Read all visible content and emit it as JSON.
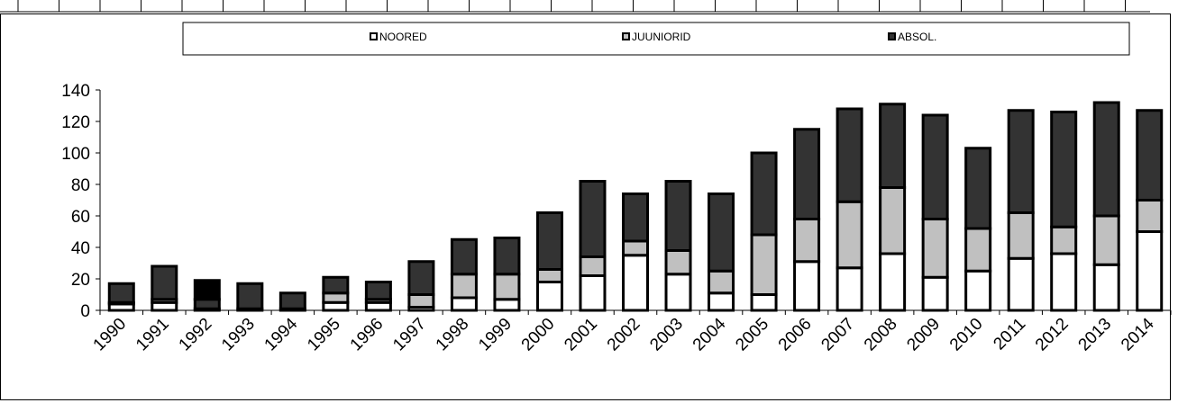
{
  "chart_data": {
    "type": "bar",
    "stacked": true,
    "categories": [
      "1990",
      "1991",
      "1992",
      "1993",
      "1994",
      "1995",
      "1996",
      "1997",
      "1998",
      "1999",
      "2000",
      "2001",
      "2002",
      "2003",
      "2004",
      "2005",
      "2006",
      "2007",
      "2008",
      "2009",
      "2010",
      "2011",
      "2012",
      "2013",
      "2014"
    ],
    "series": [
      {
        "name": "NOORED",
        "color": "#ffffff",
        "values": [
          4,
          5,
          0,
          0,
          0,
          5,
          5,
          2,
          8,
          7,
          18,
          22,
          35,
          23,
          11,
          10,
          31,
          27,
          36,
          21,
          25,
          33,
          36,
          29,
          50
        ]
      },
      {
        "name": "JUUNIORID",
        "color": "#c0c0c0",
        "values": [
          1,
          2,
          1,
          1,
          1,
          6,
          2,
          8,
          15,
          16,
          8,
          12,
          9,
          15,
          14,
          38,
          27,
          42,
          42,
          37,
          27,
          29,
          17,
          31,
          20
        ]
      },
      {
        "name": "ABSOL.",
        "color": "#333333",
        "values": [
          12,
          21,
          6,
          16,
          10,
          10,
          11,
          21,
          22,
          23,
          36,
          48,
          30,
          44,
          49,
          52,
          57,
          59,
          53,
          66,
          51,
          65,
          73,
          72,
          57
        ]
      },
      {
        "name": "",
        "color": "#000000",
        "values": [
          0,
          0,
          12,
          0,
          0,
          0,
          0,
          0,
          0,
          0,
          0,
          0,
          0,
          0,
          0,
          0,
          0,
          0,
          0,
          0,
          0,
          0,
          0,
          0,
          0
        ]
      }
    ],
    "ylim": [
      0,
      140
    ],
    "yticks": [
      0,
      20,
      40,
      60,
      80,
      100,
      120,
      140
    ],
    "grid": false,
    "legend": "top"
  }
}
